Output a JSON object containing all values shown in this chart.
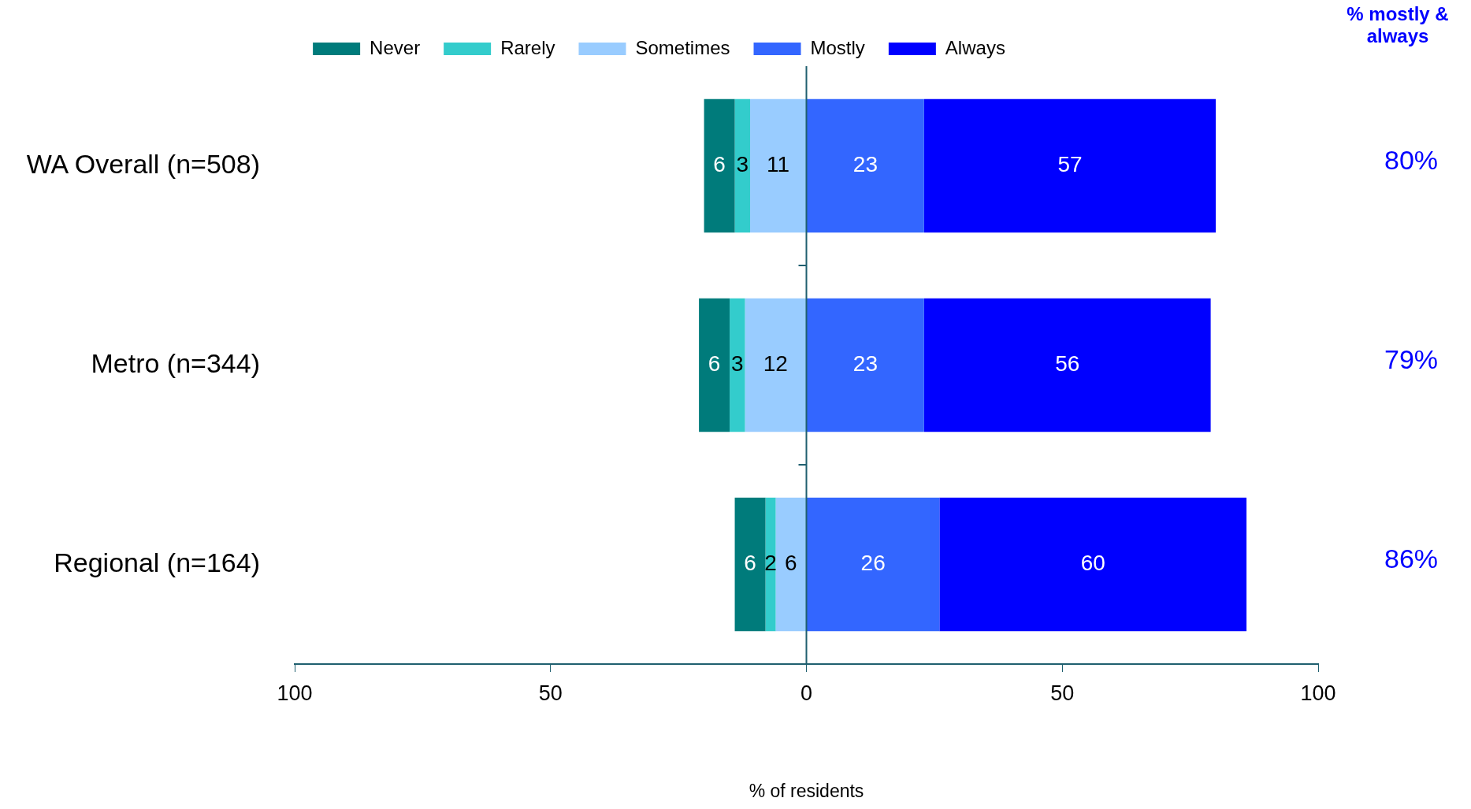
{
  "chart_data": {
    "type": "bar",
    "orientation": "horizontal",
    "categories": [
      "WA Overall (n=508)",
      "Metro (n=344)",
      "Regional (n=164)"
    ],
    "series": [
      {
        "name": "Never",
        "color": "#007b7b",
        "values": [
          6,
          6,
          6
        ],
        "base": [
          -20,
          -21,
          -14
        ]
      },
      {
        "name": "Rarely",
        "color": "#33cccc",
        "values": [
          3,
          3,
          2
        ],
        "base": [
          -14,
          -15,
          -8
        ]
      },
      {
        "name": "Sometimes",
        "color": "#99ccff",
        "values": [
          11,
          12,
          6
        ],
        "base": [
          -11,
          -12,
          -6
        ]
      },
      {
        "name": "Mostly",
        "color": "#3366ff",
        "values": [
          23,
          23,
          26
        ],
        "base": [
          0,
          0,
          0
        ]
      },
      {
        "name": "Always",
        "color": "#0000ff",
        "values": [
          57,
          56,
          60
        ],
        "base": [
          23,
          23,
          26
        ]
      }
    ],
    "xlim": [
      -100,
      100
    ],
    "xticks": [
      {
        "value": -100,
        "label": "100"
      },
      {
        "value": -50,
        "label": "50"
      },
      0,
      50,
      100
    ],
    "xlabel": "% of residents",
    "data_labels": true,
    "ref_lines": [
      {
        "axis": "x",
        "value": 0,
        "color": "#1f5f6f"
      }
    ],
    "annotations": [
      "% mostly & always",
      "80%",
      "79%",
      "86%"
    ],
    "legend": "top",
    "grid": false
  }
}
